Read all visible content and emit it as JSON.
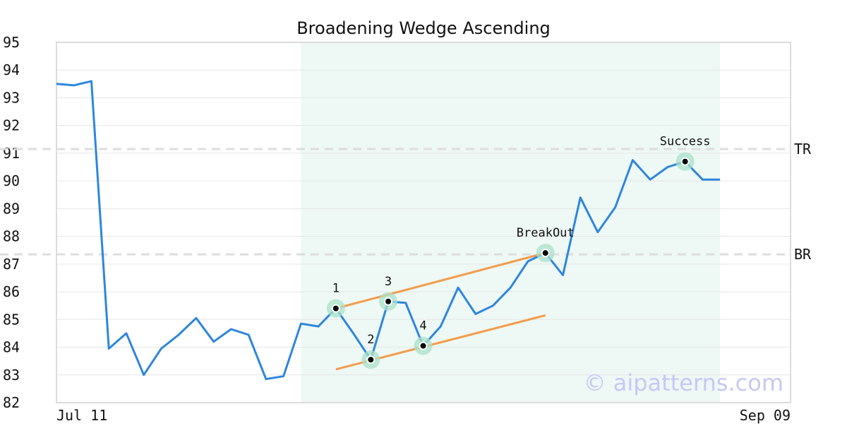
{
  "chart_data": {
    "type": "line",
    "title": "Broadening Wedge Ascending",
    "xlabel": "",
    "ylabel": "",
    "ylim": [
      82,
      95
    ],
    "yticks": [
      82,
      83,
      84,
      85,
      86,
      87,
      88,
      89,
      90,
      91,
      92,
      93,
      94,
      95
    ],
    "x_tick_labels": [
      "Jul 11",
      "Sep 09"
    ],
    "grid": true,
    "pattern_region": {
      "start_index": 14,
      "end_index": 38
    },
    "series": [
      {
        "color": "#2e86de",
        "values": [
          93.5,
          93.45,
          93.6,
          83.95,
          84.5,
          83.0,
          83.95,
          84.45,
          85.05,
          84.2,
          84.65,
          84.45,
          82.85,
          82.95,
          84.85,
          84.75,
          85.4,
          84.5,
          83.55,
          85.65,
          85.6,
          84.05,
          84.75,
          86.15,
          85.2,
          85.5,
          86.15,
          87.1,
          87.4,
          86.6,
          89.4,
          88.15,
          89.05,
          90.75,
          90.05,
          90.5,
          90.7,
          90.05,
          90.05
        ]
      }
    ],
    "levels": [
      {
        "label": "TR",
        "value": 91.15
      },
      {
        "label": "BR",
        "value": 87.35
      }
    ],
    "trendlines": [
      {
        "color": "#f39c4a",
        "from": {
          "x": 16,
          "y": 85.4
        },
        "to": {
          "x": 28,
          "y": 87.4
        }
      },
      {
        "color": "#f39c4a",
        "from": {
          "x": 16,
          "y": 83.2
        },
        "to": {
          "x": 28,
          "y": 85.15
        }
      }
    ],
    "markers": [
      {
        "label": "1",
        "x": 16,
        "y": 85.4,
        "label_pos": "above"
      },
      {
        "label": "2",
        "x": 18,
        "y": 83.55,
        "label_pos": "above"
      },
      {
        "label": "3",
        "x": 19,
        "y": 85.65,
        "label_pos": "above"
      },
      {
        "label": "4",
        "x": 21,
        "y": 84.05,
        "label_pos": "above"
      },
      {
        "label": "BreakOut",
        "x": 28,
        "y": 87.4,
        "label_pos": "above"
      },
      {
        "label": "Success",
        "x": 36,
        "y": 90.7,
        "label_pos": "above"
      }
    ],
    "watermark": "© aipatterns.com",
    "colors": {
      "line": "#2e86de",
      "trend": "#f39c4a",
      "region": "#e3f4ee",
      "marker_halo": "#a9e2c9",
      "level": "#dddddd",
      "watermark": "#c8c8f5"
    }
  }
}
